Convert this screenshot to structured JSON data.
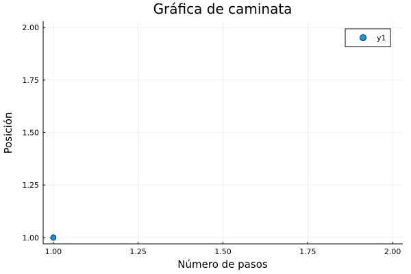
{
  "chart_data": {
    "type": "scatter",
    "title": "Gráfica de caminata",
    "xlabel": "Número de pasos",
    "ylabel": "Posición",
    "xlim": [
      0.97,
      2.03
    ],
    "ylim": [
      0.97,
      2.03
    ],
    "xticks": [
      1.0,
      1.25,
      1.5,
      1.75,
      2.0
    ],
    "xtick_labels": [
      "1.00",
      "1.25",
      "1.50",
      "1.75",
      "2.00"
    ],
    "yticks": [
      1.0,
      1.25,
      1.5,
      1.75,
      2.0
    ],
    "ytick_labels": [
      "1.00",
      "1.25",
      "1.50",
      "1.75",
      "2.00"
    ],
    "grid": true,
    "legend_position": "top-right",
    "series": [
      {
        "name": "y1",
        "color": "#009AFA",
        "points": [
          {
            "x": 1,
            "y": 1
          }
        ]
      }
    ]
  }
}
